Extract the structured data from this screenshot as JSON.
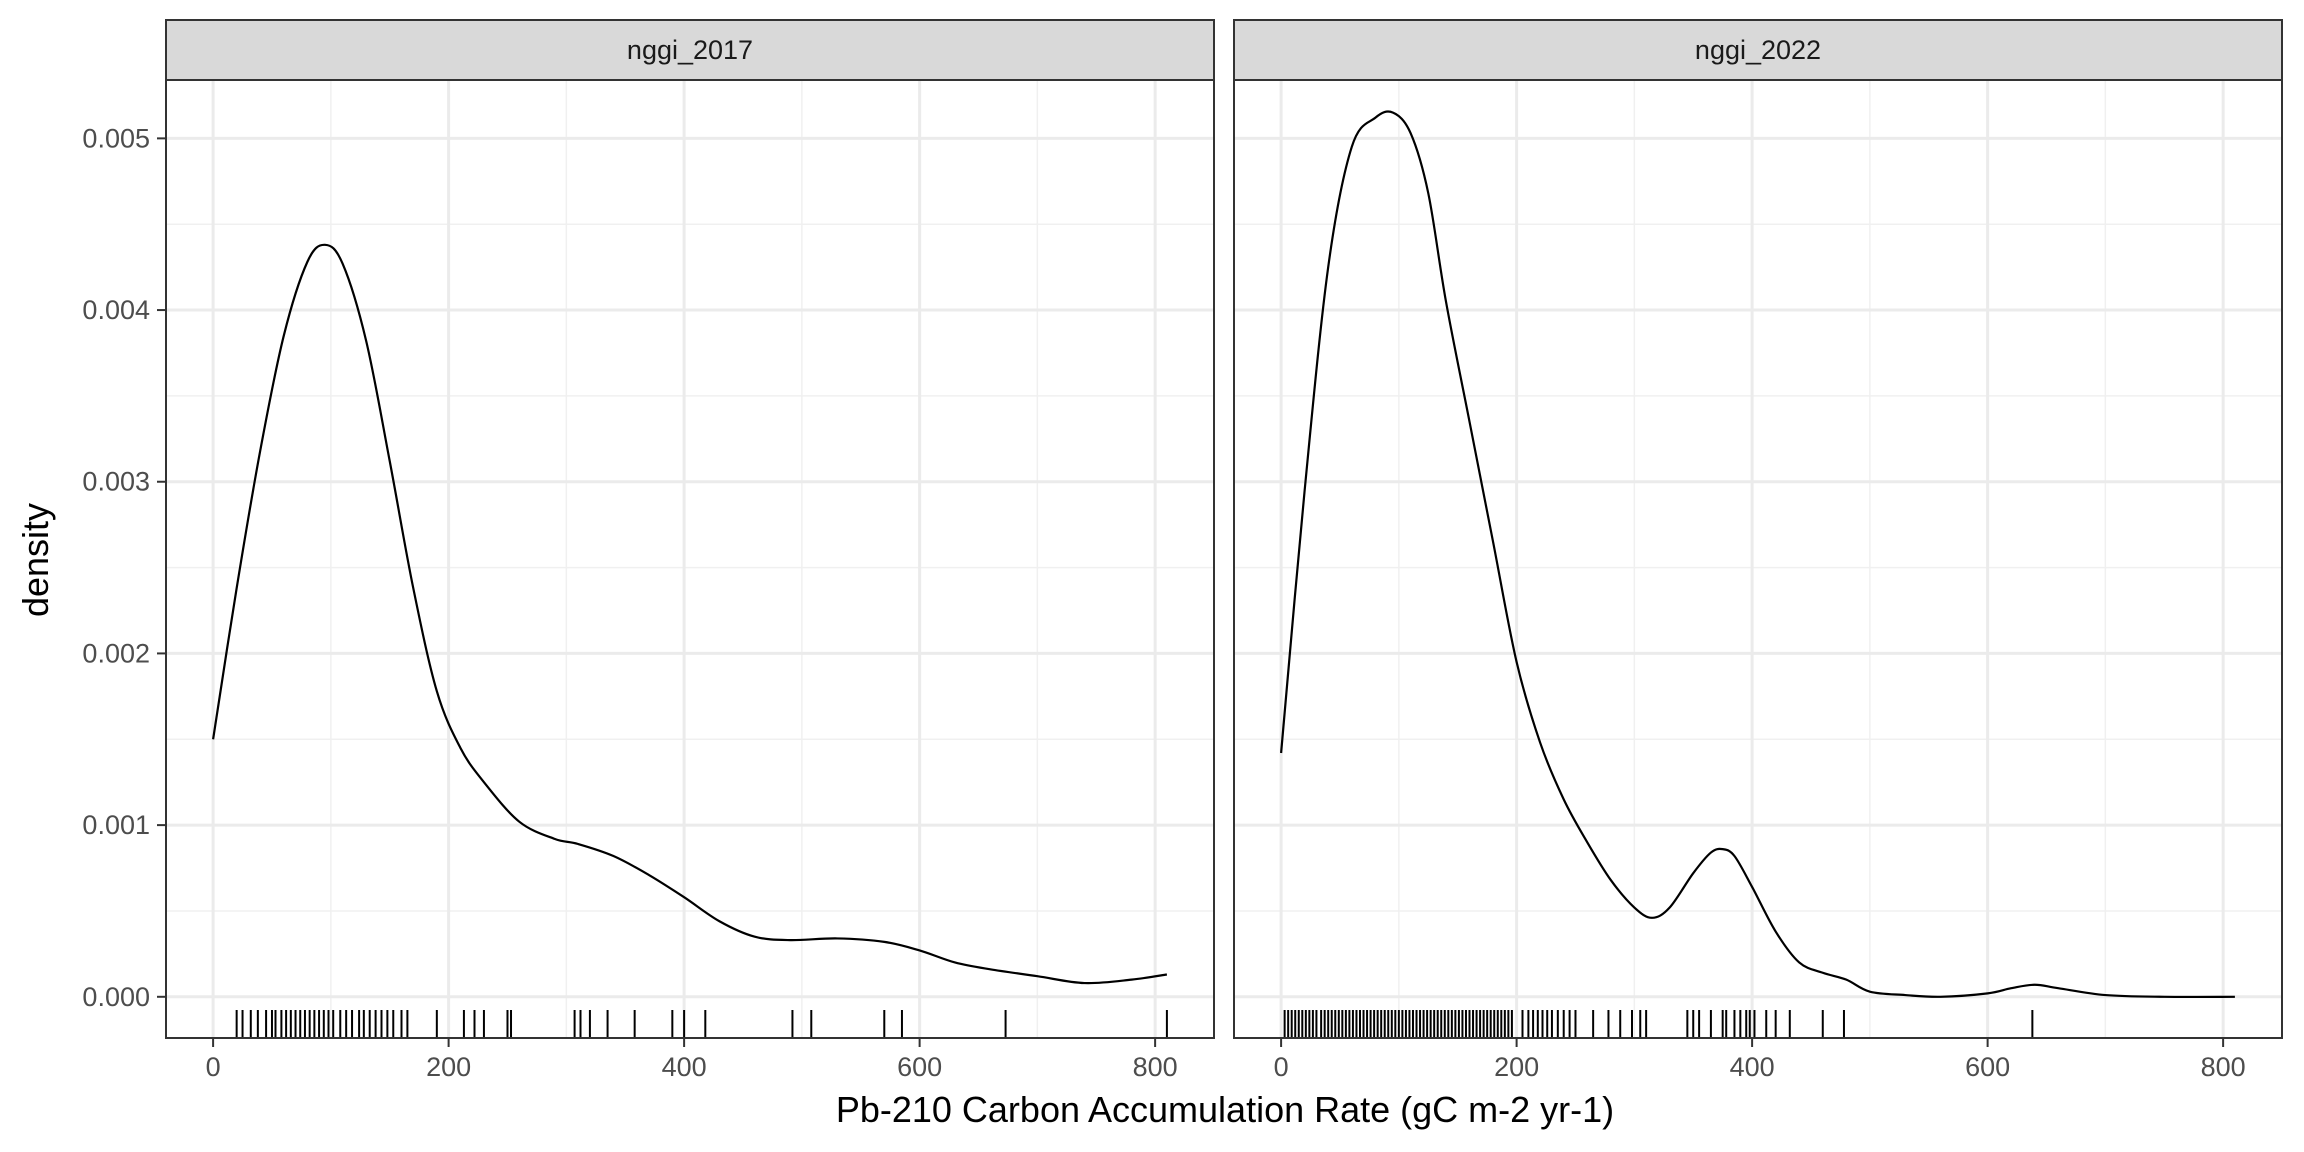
{
  "chart_data": {
    "type": "density",
    "xlabel": "Pb-210 Carbon Accumulation Rate (gC m-2 yr-1)",
    "ylabel": "density",
    "xlim": [
      -40,
      850
    ],
    "ylim": [
      -0.00024,
      0.00534
    ],
    "x_ticks": [
      0,
      200,
      400,
      600,
      800
    ],
    "x_tick_labels": [
      "0",
      "200",
      "400",
      "600",
      "800"
    ],
    "y_ticks": [
      0,
      0.001,
      0.002,
      0.003,
      0.004,
      0.005
    ],
    "y_tick_labels": [
      "0.000",
      "0.001",
      "0.002",
      "0.003",
      "0.004",
      "0.005"
    ],
    "grid": true,
    "panels": [
      {
        "name": "nggi_2017",
        "density": {
          "x": [
            0,
            20,
            40,
            60,
            80,
            95,
            110,
            130,
            150,
            170,
            190,
            210,
            230,
            260,
            290,
            310,
            340,
            370,
            400,
            430,
            460,
            490,
            530,
            570,
            600,
            630,
            660,
            700,
            740,
            780,
            810
          ],
          "y": [
            0.0015,
            0.00238,
            0.00318,
            0.00385,
            0.00428,
            0.00438,
            0.00427,
            0.00382,
            0.00312,
            0.00238,
            0.00178,
            0.00145,
            0.00125,
            0.00102,
            0.00092,
            0.00089,
            0.00082,
            0.00071,
            0.00058,
            0.00044,
            0.00035,
            0.00033,
            0.00034,
            0.00032,
            0.00027,
            0.0002,
            0.00016,
            0.00012,
            8e-05,
            0.0001,
            0.00013
          ]
        },
        "rug": [
          20,
          25,
          32,
          38,
          45,
          50,
          53,
          58,
          62,
          66,
          70,
          74,
          78,
          82,
          86,
          90,
          94,
          98,
          102,
          108,
          113,
          118,
          124,
          128,
          133,
          138,
          143,
          148,
          153,
          160,
          165,
          190,
          213,
          222,
          230,
          250,
          253,
          307,
          312,
          320,
          335,
          358,
          390,
          400,
          418,
          492,
          508,
          570,
          585,
          673,
          810
        ]
      },
      {
        "name": "nggi_2022",
        "density": {
          "x": [
            0,
            20,
            40,
            60,
            80,
            95,
            110,
            125,
            140,
            160,
            180,
            200,
            220,
            240,
            260,
            280,
            300,
            315,
            330,
            350,
            365,
            375,
            385,
            400,
            420,
            440,
            460,
            480,
            500,
            530,
            560,
            600,
            620,
            640,
            660,
            700,
            750,
            810
          ],
          "y": [
            0.00142,
            0.00295,
            0.00425,
            0.00495,
            0.00512,
            0.00515,
            0.00503,
            0.00468,
            0.00405,
            0.00335,
            0.00265,
            0.00195,
            0.00148,
            0.00115,
            0.0009,
            0.00068,
            0.00052,
            0.00046,
            0.00052,
            0.00072,
            0.00084,
            0.00086,
            0.00082,
            0.00064,
            0.00038,
            0.0002,
            0.00014,
            0.0001,
            3e-05,
            1e-05,
            0.0,
            2e-05,
            5e-05,
            7e-05,
            5e-05,
            1e-05,
            0.0,
            0.0
          ]
        },
        "rug": [
          3,
          6,
          9,
          12,
          15,
          18,
          21,
          24,
          27,
          30,
          34,
          37,
          40,
          43,
          46,
          49,
          52,
          55,
          58,
          61,
          64,
          67,
          70,
          73,
          76,
          79,
          82,
          85,
          88,
          91,
          94,
          97,
          100,
          103,
          106,
          109,
          112,
          115,
          118,
          121,
          124,
          127,
          130,
          133,
          136,
          139,
          142,
          145,
          148,
          151,
          154,
          157,
          160,
          163,
          166,
          169,
          172,
          175,
          178,
          181,
          184,
          187,
          190,
          193,
          196,
          205,
          210,
          214,
          218,
          222,
          226,
          230,
          235,
          240,
          245,
          250,
          265,
          278,
          288,
          298,
          305,
          310,
          345,
          350,
          355,
          365,
          375,
          378,
          385,
          390,
          395,
          398,
          402,
          412,
          420,
          432,
          460,
          478,
          638
        ]
      }
    ]
  }
}
